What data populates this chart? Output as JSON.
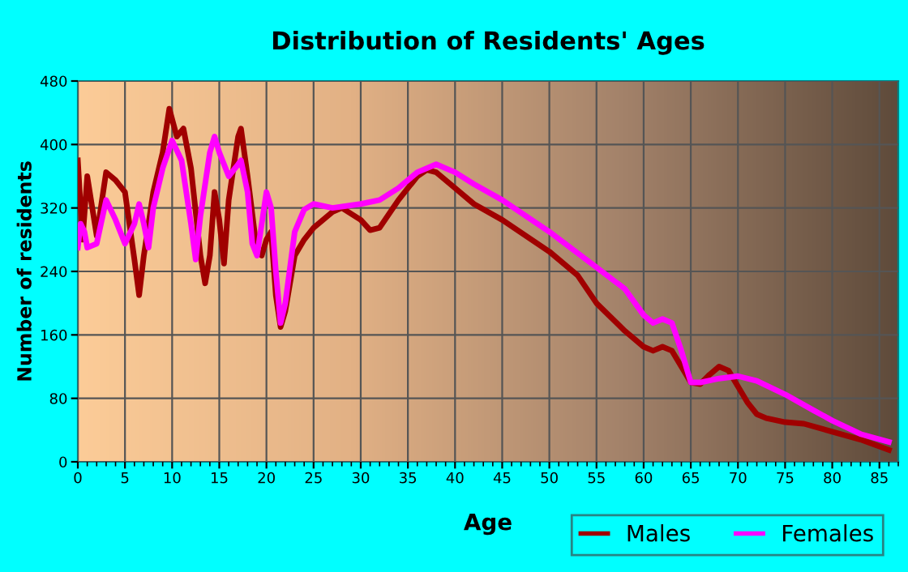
{
  "chart_data": {
    "type": "line",
    "title": "Distribution of Residents' Ages",
    "xlabel": "Age",
    "ylabel": "Number of residents",
    "xlim": [
      0,
      87
    ],
    "xticks": [
      0,
      5,
      10,
      15,
      20,
      25,
      30,
      35,
      40,
      45,
      50,
      55,
      60,
      65,
      70,
      75,
      80,
      85
    ],
    "ylim": [
      0,
      480
    ],
    "yticks": [
      0,
      80,
      160,
      240,
      320,
      400,
      480
    ],
    "grid": true,
    "legend": "bottom right",
    "line_style": "solid",
    "marker": "none",
    "series": [
      {
        "name": "Males",
        "color": "#a00000",
        "x": [
          0,
          0.5,
          1,
          2,
          3,
          4,
          5,
          6,
          6.5,
          7,
          8,
          9,
          9.7,
          10.5,
          11.2,
          12,
          13,
          13.5,
          14,
          14.5,
          15,
          15.5,
          16,
          17,
          17.3,
          18,
          19,
          19.5,
          20,
          20.5,
          21,
          21.5,
          22,
          23,
          24,
          25,
          27,
          28,
          30,
          31,
          32,
          34,
          36,
          37,
          38,
          40,
          42,
          45,
          50,
          53,
          55,
          58,
          60,
          61,
          62,
          63,
          64,
          65,
          66,
          67,
          68,
          69,
          70,
          71,
          72,
          73,
          75,
          77,
          80,
          83,
          86
        ],
        "values": [
          380,
          280,
          360,
          285,
          365,
          355,
          340,
          255,
          210,
          260,
          340,
          390,
          445,
          410,
          420,
          370,
          260,
          225,
          260,
          340,
          305,
          250,
          330,
          410,
          420,
          360,
          265,
          260,
          280,
          290,
          210,
          170,
          190,
          260,
          280,
          295,
          315,
          320,
          305,
          292,
          295,
          330,
          360,
          368,
          365,
          345,
          325,
          305,
          265,
          235,
          200,
          165,
          145,
          140,
          145,
          140,
          120,
          100,
          98,
          110,
          120,
          115,
          95,
          75,
          60,
          55,
          50,
          48,
          38,
          28,
          15
        ]
      },
      {
        "name": "Females",
        "color": "#ff00ff",
        "x": [
          0,
          0.3,
          0.7,
          1,
          2,
          3,
          4,
          5,
          6,
          6.5,
          7,
          7.5,
          8,
          9,
          10,
          11,
          12,
          12.5,
          13,
          14,
          14.5,
          15,
          16,
          17,
          17.3,
          18,
          18.5,
          19,
          19.5,
          20,
          20.5,
          21,
          21.5,
          22,
          23,
          24,
          25,
          27,
          30,
          32,
          34,
          36,
          38,
          40,
          42,
          45,
          50,
          55,
          58,
          60,
          61,
          62,
          63,
          64,
          65,
          66,
          68,
          70,
          72,
          75,
          78,
          80,
          83,
          86
        ],
        "values": [
          270,
          300,
          290,
          270,
          275,
          330,
          305,
          275,
          300,
          325,
          300,
          270,
          320,
          370,
          405,
          380,
          300,
          255,
          310,
          390,
          410,
          390,
          360,
          375,
          380,
          340,
          275,
          260,
          300,
          340,
          320,
          240,
          175,
          200,
          290,
          318,
          325,
          320,
          325,
          330,
          345,
          365,
          375,
          365,
          350,
          330,
          290,
          245,
          218,
          185,
          175,
          180,
          175,
          140,
          100,
          100,
          105,
          108,
          102,
          85,
          65,
          52,
          35,
          25
        ]
      }
    ]
  }
}
